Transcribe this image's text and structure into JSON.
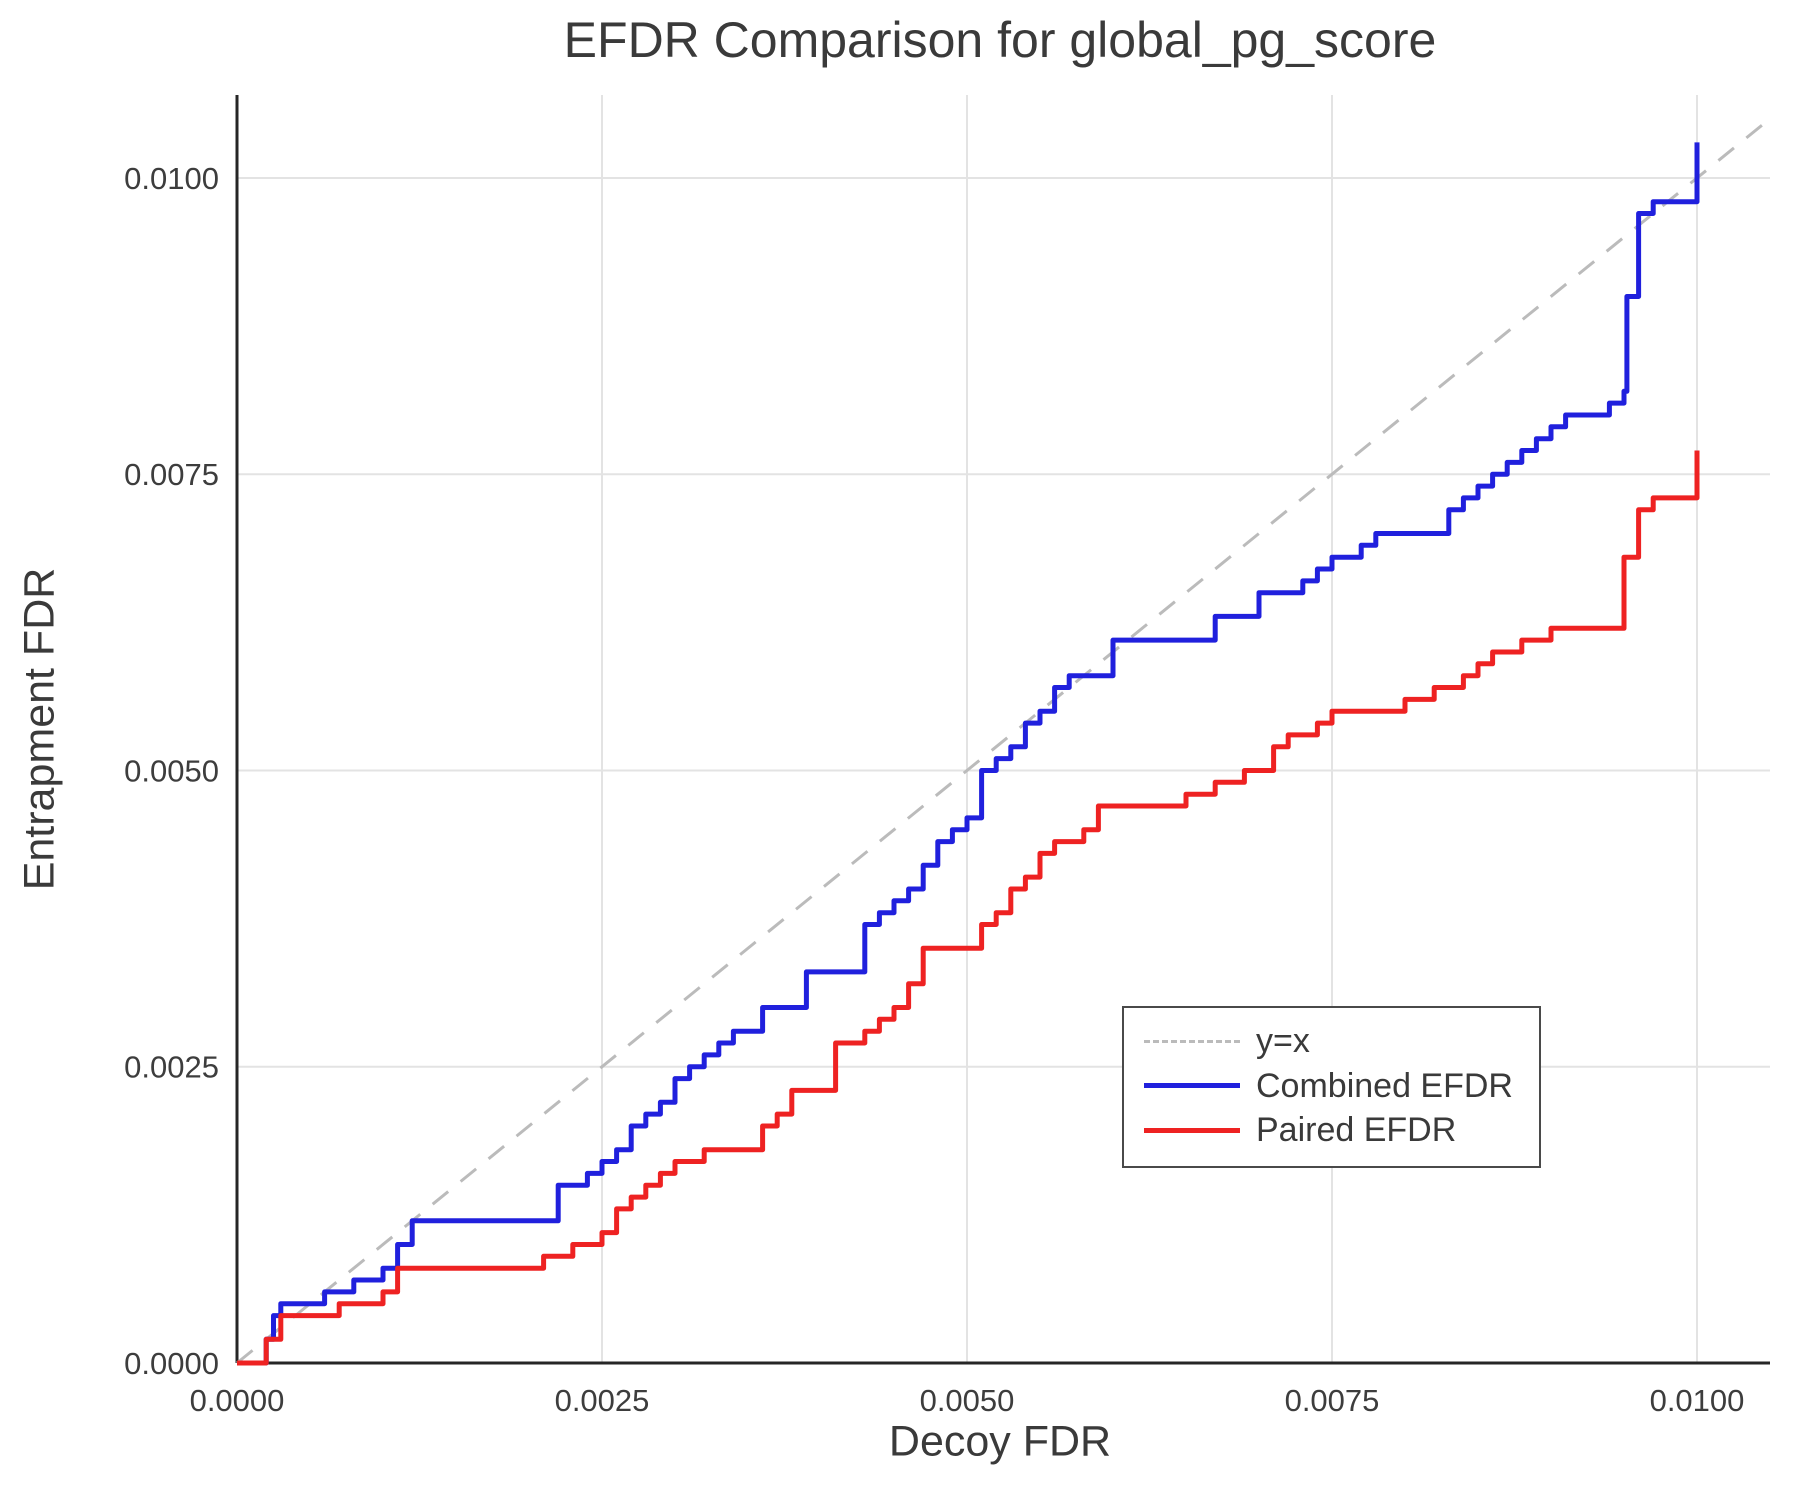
{
  "chart_data": {
    "type": "line",
    "title": "EFDR Comparison for global_pg_score",
    "xlabel": "Decoy FDR",
    "ylabel": "Entrapment FDR",
    "xlim": [
      0.0,
      0.0105
    ],
    "ylim": [
      0.0,
      0.0107
    ],
    "grid": true,
    "legend_position": "bottom-right",
    "x_ticks": [
      0.0,
      0.0025,
      0.005,
      0.0075,
      0.01
    ],
    "x_tick_labels": [
      "0.0000",
      "0.0025",
      "0.0050",
      "0.0075",
      "0.0100"
    ],
    "y_ticks": [
      0.0,
      0.0025,
      0.005,
      0.0075,
      0.01
    ],
    "y_tick_labels": [
      "0.0000",
      "0.0025",
      "0.0050",
      "0.0075",
      "0.0100"
    ],
    "colors": {
      "grid": "#e3e3e3",
      "axis": "#262626",
      "text": "#3a3a3a",
      "background": "#ffffff"
    },
    "reference_line": {
      "label": "y=x",
      "style": "dashed",
      "color": "#bbbbbb",
      "from": [
        0.0,
        0.0
      ],
      "to": [
        0.0105,
        0.0105
      ]
    },
    "series": [
      {
        "id": "combined-efdr",
        "name": "Combined EFDR",
        "color": "#2020dd",
        "step": true,
        "points": [
          [
            0.0,
            0.0
          ],
          [
            0.0002,
            0.0002
          ],
          [
            0.00025,
            0.0004
          ],
          [
            0.0003,
            0.0005
          ],
          [
            0.0005,
            0.0005
          ],
          [
            0.0006,
            0.0006
          ],
          [
            0.0008,
            0.0007
          ],
          [
            0.001,
            0.0008
          ],
          [
            0.0011,
            0.001
          ],
          [
            0.0012,
            0.0012
          ],
          [
            0.0021,
            0.0012
          ],
          [
            0.0022,
            0.0015
          ],
          [
            0.0024,
            0.0016
          ],
          [
            0.0025,
            0.0017
          ],
          [
            0.0026,
            0.0018
          ],
          [
            0.0027,
            0.002
          ],
          [
            0.0028,
            0.0021
          ],
          [
            0.0029,
            0.0022
          ],
          [
            0.003,
            0.0024
          ],
          [
            0.0031,
            0.0025
          ],
          [
            0.0032,
            0.0026
          ],
          [
            0.0033,
            0.0027
          ],
          [
            0.0034,
            0.0028
          ],
          [
            0.0036,
            0.003
          ],
          [
            0.0038,
            0.003
          ],
          [
            0.0039,
            0.0033
          ],
          [
            0.0042,
            0.0033
          ],
          [
            0.0043,
            0.0037
          ],
          [
            0.0044,
            0.0038
          ],
          [
            0.0045,
            0.0039
          ],
          [
            0.0046,
            0.004
          ],
          [
            0.0047,
            0.0042
          ],
          [
            0.0048,
            0.0044
          ],
          [
            0.0049,
            0.0045
          ],
          [
            0.005,
            0.0046
          ],
          [
            0.0051,
            0.005
          ],
          [
            0.0052,
            0.0051
          ],
          [
            0.0053,
            0.0052
          ],
          [
            0.0054,
            0.0054
          ],
          [
            0.0055,
            0.0055
          ],
          [
            0.0056,
            0.0057
          ],
          [
            0.0057,
            0.0058
          ],
          [
            0.0059,
            0.0058
          ],
          [
            0.006,
            0.0061
          ],
          [
            0.0066,
            0.0061
          ],
          [
            0.0067,
            0.0063
          ],
          [
            0.0069,
            0.0063
          ],
          [
            0.007,
            0.0065
          ],
          [
            0.0072,
            0.0065
          ],
          [
            0.0073,
            0.0066
          ],
          [
            0.0074,
            0.0067
          ],
          [
            0.0075,
            0.0068
          ],
          [
            0.0077,
            0.0069
          ],
          [
            0.0078,
            0.007
          ],
          [
            0.0082,
            0.007
          ],
          [
            0.0083,
            0.0072
          ],
          [
            0.0084,
            0.0073
          ],
          [
            0.0085,
            0.0074
          ],
          [
            0.0086,
            0.0075
          ],
          [
            0.0087,
            0.0076
          ],
          [
            0.0088,
            0.0077
          ],
          [
            0.0089,
            0.0078
          ],
          [
            0.009,
            0.0079
          ],
          [
            0.0091,
            0.008
          ],
          [
            0.0093,
            0.008
          ],
          [
            0.0094,
            0.0081
          ],
          [
            0.0095,
            0.0082
          ],
          [
            0.00952,
            0.009
          ],
          [
            0.0096,
            0.0097
          ],
          [
            0.0097,
            0.0098
          ],
          [
            0.0099,
            0.0098
          ],
          [
            0.01,
            0.0103
          ]
        ]
      },
      {
        "id": "paired-efdr",
        "name": "Paired EFDR",
        "color": "#ee2222",
        "step": true,
        "points": [
          [
            0.0,
            0.0
          ],
          [
            0.0002,
            0.0002
          ],
          [
            0.0003,
            0.0004
          ],
          [
            0.0006,
            0.0004
          ],
          [
            0.0007,
            0.0005
          ],
          [
            0.0009,
            0.0005
          ],
          [
            0.001,
            0.0006
          ],
          [
            0.0011,
            0.0008
          ],
          [
            0.002,
            0.0008
          ],
          [
            0.0021,
            0.0009
          ],
          [
            0.0023,
            0.001
          ],
          [
            0.0025,
            0.0011
          ],
          [
            0.0026,
            0.0013
          ],
          [
            0.0027,
            0.0014
          ],
          [
            0.0028,
            0.0015
          ],
          [
            0.0029,
            0.0016
          ],
          [
            0.003,
            0.0017
          ],
          [
            0.0032,
            0.0018
          ],
          [
            0.0035,
            0.0018
          ],
          [
            0.0036,
            0.002
          ],
          [
            0.0037,
            0.0021
          ],
          [
            0.0038,
            0.0023
          ],
          [
            0.004,
            0.0023
          ],
          [
            0.0041,
            0.0027
          ],
          [
            0.0043,
            0.0028
          ],
          [
            0.0044,
            0.0029
          ],
          [
            0.0045,
            0.003
          ],
          [
            0.0046,
            0.0032
          ],
          [
            0.0047,
            0.0035
          ],
          [
            0.005,
            0.0035
          ],
          [
            0.0051,
            0.0037
          ],
          [
            0.0052,
            0.0038
          ],
          [
            0.0053,
            0.004
          ],
          [
            0.0054,
            0.0041
          ],
          [
            0.0055,
            0.0043
          ],
          [
            0.0056,
            0.0044
          ],
          [
            0.0058,
            0.0045
          ],
          [
            0.0059,
            0.0047
          ],
          [
            0.0064,
            0.0047
          ],
          [
            0.0065,
            0.0048
          ],
          [
            0.0067,
            0.0049
          ],
          [
            0.0069,
            0.005
          ],
          [
            0.0071,
            0.0052
          ],
          [
            0.0072,
            0.0053
          ],
          [
            0.0074,
            0.0054
          ],
          [
            0.0075,
            0.0055
          ],
          [
            0.0079,
            0.0055
          ],
          [
            0.008,
            0.0056
          ],
          [
            0.0082,
            0.0057
          ],
          [
            0.0084,
            0.0058
          ],
          [
            0.0085,
            0.0059
          ],
          [
            0.0086,
            0.006
          ],
          [
            0.0088,
            0.0061
          ],
          [
            0.009,
            0.0062
          ],
          [
            0.0094,
            0.0062
          ],
          [
            0.0095,
            0.0068
          ],
          [
            0.0096,
            0.0072
          ],
          [
            0.0097,
            0.0073
          ],
          [
            0.0099,
            0.0073
          ],
          [
            0.01,
            0.0077
          ]
        ]
      }
    ],
    "legend": [
      {
        "label": "y=x"
      },
      {
        "label": "Combined EFDR"
      },
      {
        "label": "Paired EFDR"
      }
    ]
  }
}
